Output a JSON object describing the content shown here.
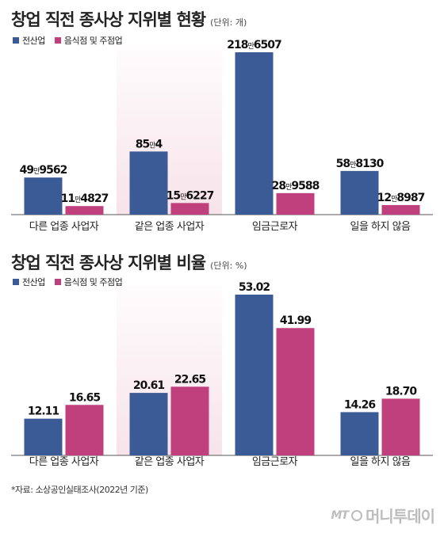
{
  "colors": {
    "series1": "#3b5b96",
    "series2": "#c0407e",
    "highlight": "#f7e3ea",
    "axis": "#555555"
  },
  "chart_data": [
    {
      "type": "bar",
      "title": "창업 직전 종사상 지위별 현황",
      "unit": "(단위: 개)",
      "categories": [
        "다른 업종 사업자",
        "같은 업종 사업자",
        "임금근로자",
        "일을 하지 않음"
      ],
      "highlight_category": 1,
      "series": [
        {
          "name": "전산업",
          "values": [
            499562,
            850004,
            2186507,
            588130
          ],
          "labels": [
            [
              "49",
              "9562"
            ],
            [
              "85",
              "4"
            ],
            [
              "218",
              "6507"
            ],
            [
              "58",
              "8130"
            ]
          ]
        },
        {
          "name": "음식점 및 주점업",
          "values": [
            114827,
            156227,
            289588,
            128987
          ],
          "labels": [
            [
              "11",
              "4827"
            ],
            [
              "15",
              "6227"
            ],
            [
              "28",
              "9588"
            ],
            [
              "12",
              "8987"
            ]
          ]
        }
      ],
      "ylim": [
        0,
        2186507
      ]
    },
    {
      "type": "bar",
      "title": "창업 직전 종사상 지위별 비율",
      "unit": "(단위: %)",
      "categories": [
        "다른 업종 사업자",
        "같은 업종 사업자",
        "임금근로자",
        "일을 하지 않음"
      ],
      "highlight_category": 1,
      "series": [
        {
          "name": "전산업",
          "values": [
            12.11,
            20.61,
            53.02,
            14.26
          ],
          "labels": [
            "12.11",
            "20.61",
            "53.02",
            "14.26"
          ]
        },
        {
          "name": "음식점 및 주점업",
          "values": [
            16.65,
            22.65,
            41.99,
            18.7
          ],
          "labels": [
            "16.65",
            "22.65",
            "41.99",
            "18.70"
          ]
        }
      ],
      "ylim": [
        0,
        53.02
      ]
    }
  ],
  "source": "*자료: 소상공인실태조사(2022년 기준)",
  "logo": {
    "mark": "MT",
    "text": "머니투데이"
  }
}
